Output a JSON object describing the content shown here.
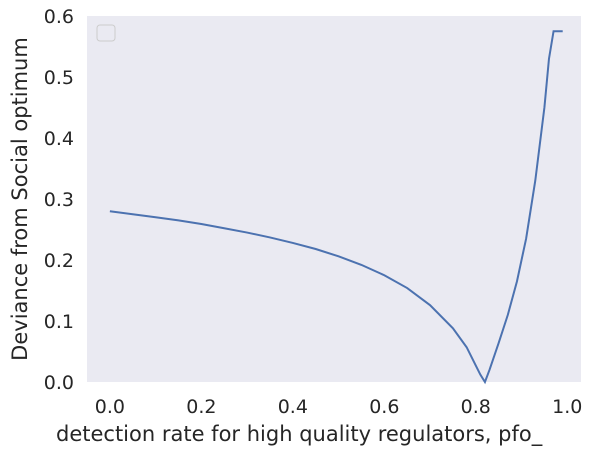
{
  "chart_data": {
    "type": "line",
    "title": "",
    "xlabel": "detection rate for high quality regulators, pfo_",
    "ylabel": "Deviance from Social optimum",
    "xlim": [
      -0.05,
      1.03
    ],
    "ylim": [
      0.0,
      0.6
    ],
    "xticks": [
      0.0,
      0.2,
      0.4,
      0.6,
      0.8,
      1.0
    ],
    "xtick_labels": [
      "0.0",
      "0.2",
      "0.4",
      "0.6",
      "0.8",
      "1.0"
    ],
    "yticks": [
      0.0,
      0.1,
      0.2,
      0.3,
      0.4,
      0.5,
      0.6
    ],
    "ytick_labels": [
      "0.0",
      "0.1",
      "0.2",
      "0.3",
      "0.4",
      "0.5",
      "0.6"
    ],
    "grid": false,
    "legend": "top-left (empty)",
    "background": "#eaeaf2",
    "series": [
      {
        "color": "#4c72b0",
        "x": [
          0.0,
          0.05,
          0.1,
          0.15,
          0.2,
          0.25,
          0.3,
          0.35,
          0.4,
          0.45,
          0.5,
          0.55,
          0.6,
          0.65,
          0.7,
          0.75,
          0.78,
          0.8,
          0.81,
          0.82,
          0.83,
          0.85,
          0.87,
          0.89,
          0.91,
          0.93,
          0.95,
          0.96,
          0.97,
          0.99
        ],
        "y": [
          0.28,
          0.275,
          0.27,
          0.265,
          0.259,
          0.252,
          0.245,
          0.237,
          0.228,
          0.218,
          0.206,
          0.192,
          0.175,
          0.154,
          0.126,
          0.088,
          0.057,
          0.027,
          0.012,
          0.0,
          0.02,
          0.064,
          0.11,
          0.165,
          0.235,
          0.33,
          0.45,
          0.53,
          0.575,
          0.575
        ]
      }
    ]
  }
}
